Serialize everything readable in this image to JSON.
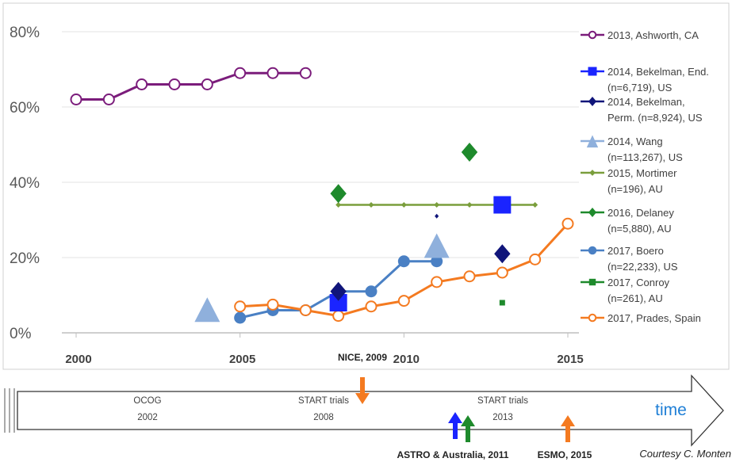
{
  "chart_data": {
    "type": "line",
    "ylim": [
      0,
      80
    ],
    "yticks": [
      "0%",
      "20%",
      "40%",
      "60%",
      "80%"
    ],
    "xlim": [
      2000,
      2015.6
    ],
    "xticks": [
      "2000",
      "2005",
      "2010",
      "2015"
    ],
    "grid": true,
    "legend_position": "right",
    "series": [
      {
        "name": "2013, Ashworth, CA",
        "color": "#7b1c7b",
        "marker": "circle-open",
        "line": true,
        "x": [
          2000,
          2001,
          2002,
          2003,
          2004,
          2005,
          2006,
          2007
        ],
        "y": [
          62,
          62,
          66,
          66,
          66,
          69,
          69,
          69
        ]
      },
      {
        "name": "2014, Bekelman, End. (n=6,719), US",
        "color": "#1a24ff",
        "marker": "square",
        "line": false,
        "x": [
          2008,
          2013
        ],
        "y": [
          8,
          34
        ]
      },
      {
        "name": "2014, Bekelman, Perm. (n=8,924), US",
        "color": "#10157a",
        "marker": "diamond",
        "line": false,
        "x": [
          2008,
          2013,
          2011
        ],
        "y": [
          11,
          21,
          31
        ],
        "sizes": [
          1,
          1,
          0.25
        ]
      },
      {
        "name": "2014, Wang (n=113,267), US",
        "color": "#8fb0dc",
        "marker": "triangle",
        "line": false,
        "x": [
          2004,
          2011
        ],
        "y": [
          5,
          22
        ]
      },
      {
        "name": "2015, Mortimer (n=196), AU",
        "color": "#7a9e3c",
        "marker": "small-diamond",
        "line": true,
        "x": [
          2008,
          2009,
          2010,
          2011,
          2012,
          2013,
          2014
        ],
        "y": [
          34,
          34,
          34,
          34,
          34,
          34,
          34
        ]
      },
      {
        "name": "2016, Delaney (n=5,880), AU",
        "color": "#1e8a2c",
        "marker": "diamond",
        "line": false,
        "x": [
          2008,
          2012
        ],
        "y": [
          37,
          48
        ]
      },
      {
        "name": "2017, Boero (n=22,233), US",
        "color": "#4a80c4",
        "marker": "circle",
        "line": true,
        "x": [
          2005,
          2006,
          2007,
          2008,
          2009,
          2010,
          2011
        ],
        "y": [
          4,
          6,
          6,
          11,
          11,
          19,
          19
        ]
      },
      {
        "name": "2017, Conroy (n=261), AU",
        "color": "#1e8a2c",
        "marker": "small-square",
        "line": false,
        "x": [
          2013
        ],
        "y": [
          8
        ]
      },
      {
        "name": "2017, Prades, Spain",
        "color": "#f47a20",
        "marker": "circle-open",
        "line": true,
        "x": [
          2005,
          2006,
          2007,
          2008,
          2009,
          2010,
          2011,
          2012,
          2013,
          2014,
          2015
        ],
        "y": [
          7,
          7.5,
          6,
          4.5,
          7,
          8.5,
          13.5,
          15,
          16,
          19.5,
          29
        ]
      }
    ],
    "legend_lines": [
      {
        "series": 0,
        "lines": [
          "2013, Ashworth, CA"
        ]
      },
      {
        "series": 1,
        "lines": [
          "2014, Bekelman, End.",
          "(n=6,719), US"
        ]
      },
      {
        "series": 2,
        "lines": [
          "2014, Bekelman,",
          "Perm. (n=8,924), US"
        ]
      },
      {
        "series": 3,
        "lines": [
          "2014, Wang",
          "(n=113,267), US"
        ]
      },
      {
        "series": 4,
        "lines": [
          "2015, Mortimer",
          "(n=196), AU"
        ]
      },
      {
        "series": 5,
        "lines": [
          "2016, Delaney",
          "(n=5,880), AU"
        ]
      },
      {
        "series": 6,
        "lines": [
          "2017, Boero",
          "(n=22,233), US"
        ]
      },
      {
        "series": 7,
        "lines": [
          "2017, Conroy",
          "(n=261), AU"
        ]
      },
      {
        "series": 8,
        "lines": [
          "2017, Prades, Spain"
        ]
      }
    ]
  },
  "timeline": {
    "time_label": "time",
    "periods": [
      {
        "line1": "OCOG",
        "line2": "2002"
      },
      {
        "line1": "START trials",
        "line2": "2008"
      },
      {
        "line1": "START trials",
        "line2": "2013"
      }
    ],
    "events": [
      {
        "label": "NICE, 2009",
        "color": "#f47a20",
        "direction": "down"
      },
      {
        "label": "ASTRO & Australia, 2011",
        "color": "#1a24ff",
        "direction": "up"
      },
      {
        "label": "",
        "color": "#1e8a2c",
        "direction": "up"
      },
      {
        "label": "ESMO, 2015",
        "color": "#f47a20",
        "direction": "up"
      }
    ],
    "credit": "Courtesy C. Monten"
  }
}
